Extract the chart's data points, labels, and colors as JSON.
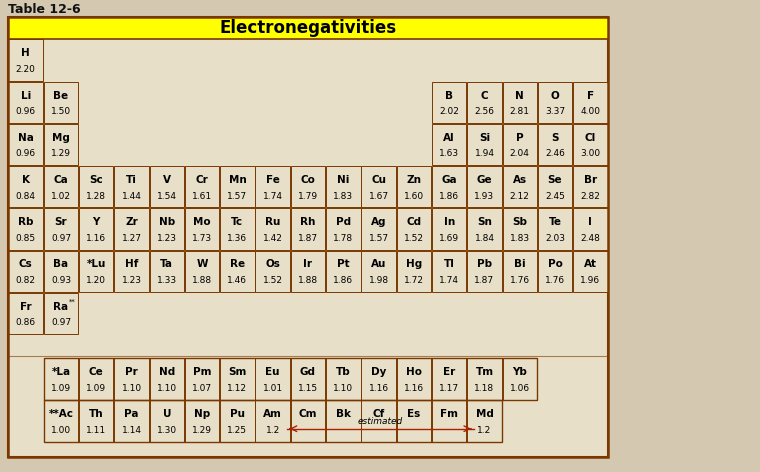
{
  "title": "Electronegativities",
  "table_label": "Table 12-6",
  "page_bg": "#d4c9b0",
  "table_bg": "#e8dfc8",
  "header_bg": "#ffff00",
  "border_color": "#7a3800",
  "title_color": "#000000",
  "title_fontsize": 12,
  "elements": [
    {
      "symbol": "H",
      "value": "2.20",
      "col": 0,
      "row": 1
    },
    {
      "symbol": "Li",
      "value": "0.96",
      "col": 0,
      "row": 2
    },
    {
      "symbol": "Be",
      "value": "1.50",
      "col": 1,
      "row": 2
    },
    {
      "symbol": "Na",
      "value": "0.96",
      "col": 0,
      "row": 3
    },
    {
      "symbol": "Mg",
      "value": "1.29",
      "col": 1,
      "row": 3
    },
    {
      "symbol": "K",
      "value": "0.84",
      "col": 0,
      "row": 4
    },
    {
      "symbol": "Ca",
      "value": "1.02",
      "col": 1,
      "row": 4
    },
    {
      "symbol": "Sc",
      "value": "1.28",
      "col": 2,
      "row": 4
    },
    {
      "symbol": "Ti",
      "value": "1.44",
      "col": 3,
      "row": 4
    },
    {
      "symbol": "V",
      "value": "1.54",
      "col": 4,
      "row": 4
    },
    {
      "symbol": "Cr",
      "value": "1.61",
      "col": 5,
      "row": 4
    },
    {
      "symbol": "Mn",
      "value": "1.57",
      "col": 6,
      "row": 4
    },
    {
      "symbol": "Fe",
      "value": "1.74",
      "col": 7,
      "row": 4
    },
    {
      "symbol": "Co",
      "value": "1.79",
      "col": 8,
      "row": 4
    },
    {
      "symbol": "Ni",
      "value": "1.83",
      "col": 9,
      "row": 4
    },
    {
      "symbol": "Cu",
      "value": "1.67",
      "col": 10,
      "row": 4
    },
    {
      "symbol": "Zn",
      "value": "1.60",
      "col": 11,
      "row": 4
    },
    {
      "symbol": "Ga",
      "value": "1.86",
      "col": 12,
      "row": 4
    },
    {
      "symbol": "Ge",
      "value": "1.93",
      "col": 13,
      "row": 4
    },
    {
      "symbol": "As",
      "value": "2.12",
      "col": 14,
      "row": 4
    },
    {
      "symbol": "Se",
      "value": "2.45",
      "col": 15,
      "row": 4
    },
    {
      "symbol": "Br",
      "value": "2.82",
      "col": 16,
      "row": 4
    },
    {
      "symbol": "B",
      "value": "2.02",
      "col": 12,
      "row": 2
    },
    {
      "symbol": "C",
      "value": "2.56",
      "col": 13,
      "row": 2
    },
    {
      "symbol": "N",
      "value": "2.81",
      "col": 14,
      "row": 2
    },
    {
      "symbol": "O",
      "value": "3.37",
      "col": 15,
      "row": 2
    },
    {
      "symbol": "F",
      "value": "4.00",
      "col": 16,
      "row": 2
    },
    {
      "symbol": "Al",
      "value": "1.63",
      "col": 12,
      "row": 3
    },
    {
      "symbol": "Si",
      "value": "1.94",
      "col": 13,
      "row": 3
    },
    {
      "symbol": "P",
      "value": "2.04",
      "col": 14,
      "row": 3
    },
    {
      "symbol": "S",
      "value": "2.46",
      "col": 15,
      "row": 3
    },
    {
      "symbol": "Cl",
      "value": "3.00",
      "col": 16,
      "row": 3
    },
    {
      "symbol": "Rb",
      "value": "0.85",
      "col": 0,
      "row": 5
    },
    {
      "symbol": "Sr",
      "value": "0.97",
      "col": 1,
      "row": 5
    },
    {
      "symbol": "Y",
      "value": "1.16",
      "col": 2,
      "row": 5
    },
    {
      "symbol": "Zr",
      "value": "1.27",
      "col": 3,
      "row": 5
    },
    {
      "symbol": "Nb",
      "value": "1.23",
      "col": 4,
      "row": 5
    },
    {
      "symbol": "Mo",
      "value": "1.73",
      "col": 5,
      "row": 5
    },
    {
      "symbol": "Tc",
      "value": "1.36",
      "col": 6,
      "row": 5
    },
    {
      "symbol": "Ru",
      "value": "1.42",
      "col": 7,
      "row": 5
    },
    {
      "symbol": "Rh",
      "value": "1.87",
      "col": 8,
      "row": 5
    },
    {
      "symbol": "Pd",
      "value": "1.78",
      "col": 9,
      "row": 5
    },
    {
      "symbol": "Ag",
      "value": "1.57",
      "col": 10,
      "row": 5
    },
    {
      "symbol": "Cd",
      "value": "1.52",
      "col": 11,
      "row": 5
    },
    {
      "symbol": "In",
      "value": "1.69",
      "col": 12,
      "row": 5
    },
    {
      "symbol": "Sn",
      "value": "1.84",
      "col": 13,
      "row": 5
    },
    {
      "symbol": "Sb",
      "value": "1.83",
      "col": 14,
      "row": 5
    },
    {
      "symbol": "Te",
      "value": "2.03",
      "col": 15,
      "row": 5
    },
    {
      "symbol": "I",
      "value": "2.48",
      "col": 16,
      "row": 5
    },
    {
      "symbol": "Cs",
      "value": "0.82",
      "col": 0,
      "row": 6
    },
    {
      "symbol": "Ba",
      "value": "0.93",
      "col": 1,
      "row": 6
    },
    {
      "symbol": "*Lu",
      "value": "1.20",
      "col": 2,
      "row": 6
    },
    {
      "symbol": "Hf",
      "value": "1.23",
      "col": 3,
      "row": 6
    },
    {
      "symbol": "Ta",
      "value": "1.33",
      "col": 4,
      "row": 6
    },
    {
      "symbol": "W",
      "value": "1.88",
      "col": 5,
      "row": 6
    },
    {
      "symbol": "Re",
      "value": "1.46",
      "col": 6,
      "row": 6
    },
    {
      "symbol": "Os",
      "value": "1.52",
      "col": 7,
      "row": 6
    },
    {
      "symbol": "Ir",
      "value": "1.88",
      "col": 8,
      "row": 6
    },
    {
      "symbol": "Pt",
      "value": "1.86",
      "col": 9,
      "row": 6
    },
    {
      "symbol": "Au",
      "value": "1.98",
      "col": 10,
      "row": 6
    },
    {
      "symbol": "Hg",
      "value": "1.72",
      "col": 11,
      "row": 6
    },
    {
      "symbol": "Tl",
      "value": "1.74",
      "col": 12,
      "row": 6
    },
    {
      "symbol": "Pb",
      "value": "1.87",
      "col": 13,
      "row": 6
    },
    {
      "symbol": "Bi",
      "value": "1.76",
      "col": 14,
      "row": 6
    },
    {
      "symbol": "Po",
      "value": "1.76",
      "col": 15,
      "row": 6
    },
    {
      "symbol": "At",
      "value": "1.96",
      "col": 16,
      "row": 6
    },
    {
      "symbol": "Fr",
      "value": "0.86",
      "col": 0,
      "row": 7
    },
    {
      "symbol": "Ra",
      "value": "0.97",
      "col": 1,
      "row": 7
    },
    {
      "symbol": "*La",
      "value": "1.09",
      "col": 1,
      "row": 9
    },
    {
      "symbol": "Ce",
      "value": "1.09",
      "col": 2,
      "row": 9
    },
    {
      "symbol": "Pr",
      "value": "1.10",
      "col": 3,
      "row": 9
    },
    {
      "symbol": "Nd",
      "value": "1.10",
      "col": 4,
      "row": 9
    },
    {
      "symbol": "Pm",
      "value": "1.07",
      "col": 5,
      "row": 9
    },
    {
      "symbol": "Sm",
      "value": "1.12",
      "col": 6,
      "row": 9
    },
    {
      "symbol": "Eu",
      "value": "1.01",
      "col": 7,
      "row": 9
    },
    {
      "symbol": "Gd",
      "value": "1.15",
      "col": 8,
      "row": 9
    },
    {
      "symbol": "Tb",
      "value": "1.10",
      "col": 9,
      "row": 9
    },
    {
      "symbol": "Dy",
      "value": "1.16",
      "col": 10,
      "row": 9
    },
    {
      "symbol": "Ho",
      "value": "1.16",
      "col": 11,
      "row": 9
    },
    {
      "symbol": "Er",
      "value": "1.17",
      "col": 12,
      "row": 9
    },
    {
      "symbol": "Tm",
      "value": "1.18",
      "col": 13,
      "row": 9
    },
    {
      "symbol": "Yb",
      "value": "1.06",
      "col": 14,
      "row": 9
    },
    {
      "symbol": "**Ac",
      "value": "1.00",
      "col": 1,
      "row": 10
    },
    {
      "symbol": "Th",
      "value": "1.11",
      "col": 2,
      "row": 10
    },
    {
      "symbol": "Pa",
      "value": "1.14",
      "col": 3,
      "row": 10
    },
    {
      "symbol": "U",
      "value": "1.30",
      "col": 4,
      "row": 10
    },
    {
      "symbol": "Np",
      "value": "1.29",
      "col": 5,
      "row": 10
    },
    {
      "symbol": "Pu",
      "value": "1.25",
      "col": 6,
      "row": 10
    },
    {
      "symbol": "Am",
      "value": "1.2",
      "col": 7,
      "row": 10
    },
    {
      "symbol": "Cm",
      "value": "",
      "col": 8,
      "row": 10
    },
    {
      "symbol": "Bk",
      "value": "",
      "col": 9,
      "row": 10
    },
    {
      "symbol": "Cf",
      "value": "",
      "col": 10,
      "row": 10
    },
    {
      "symbol": "Es",
      "value": "",
      "col": 11,
      "row": 10
    },
    {
      "symbol": "Fm",
      "value": "",
      "col": 12,
      "row": 10
    },
    {
      "symbol": "Md",
      "value": "1.2",
      "col": 13,
      "row": 10
    }
  ],
  "estimated_text": "estimated"
}
